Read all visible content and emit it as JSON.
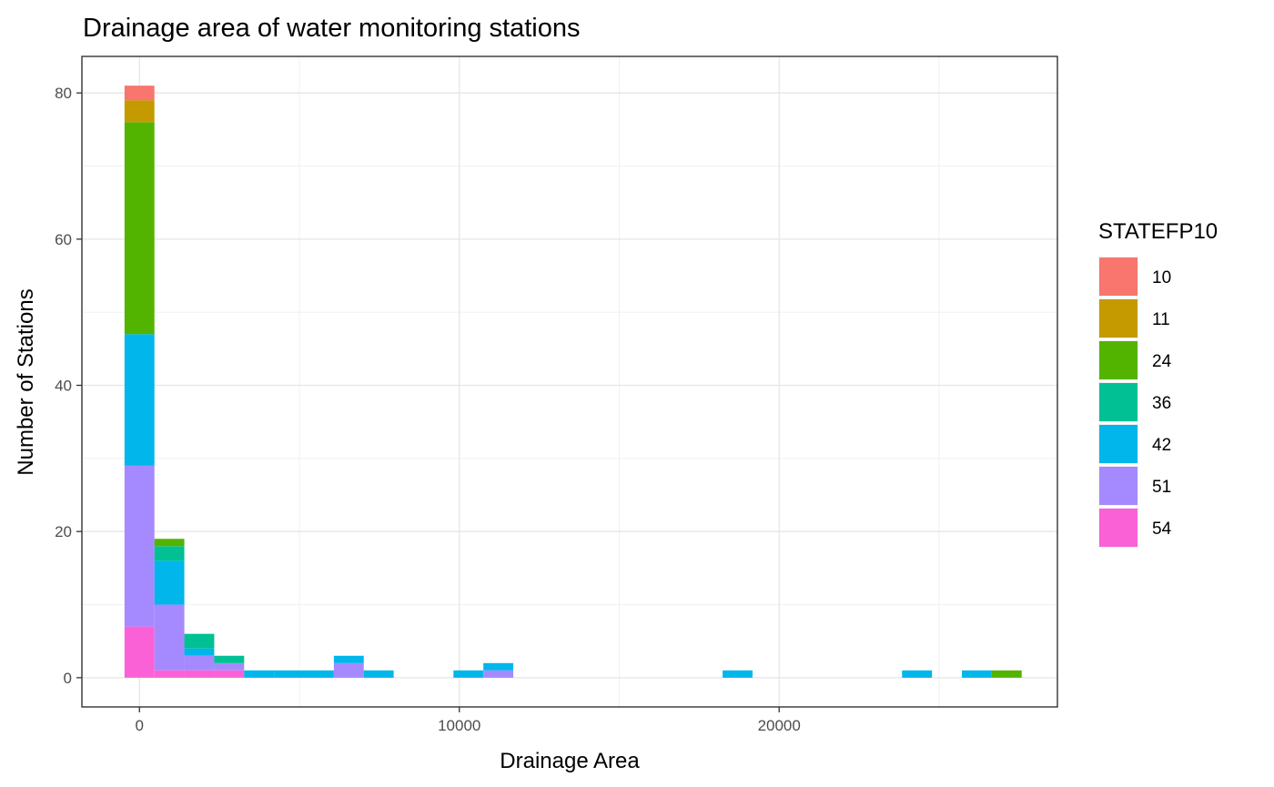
{
  "chart_data": {
    "type": "bar",
    "title": "Drainage area of water monitoring stations",
    "xlabel": "Drainage Area",
    "ylabel": "Number of Stations",
    "xlim": [
      -1800,
      28700
    ],
    "ylim": [
      -4,
      85
    ],
    "x_ticks": [
      0,
      10000,
      20000
    ],
    "x_tick_labels": [
      "0",
      "10000",
      "20000"
    ],
    "y_ticks": [
      0,
      20,
      40,
      60,
      80
    ],
    "y_tick_labels": [
      "0",
      "20",
      "40",
      "60",
      "80"
    ],
    "grid": true,
    "legend": {
      "title": "STATEFP10",
      "placement": "right"
    },
    "bin_width": 935,
    "x": [
      0,
      935,
      1870,
      2805,
      3740,
      4675,
      5610,
      6545,
      7480,
      10285,
      11220,
      18700,
      24310,
      26180,
      27115
    ],
    "series": [
      {
        "name": "10",
        "color": "#F8766D",
        "values": [
          2,
          0,
          0,
          0,
          0,
          0,
          0,
          0,
          0,
          0,
          0,
          0,
          0,
          0,
          0
        ]
      },
      {
        "name": "11",
        "color": "#C49A00",
        "values": [
          3,
          0,
          0,
          0,
          0,
          0,
          0,
          0,
          0,
          0,
          0,
          0,
          0,
          0,
          0
        ]
      },
      {
        "name": "24",
        "color": "#53B400",
        "values": [
          29,
          1,
          0,
          0,
          0,
          0,
          0,
          0,
          0,
          0,
          0,
          0,
          0,
          0,
          1
        ]
      },
      {
        "name": "36",
        "color": "#00C094",
        "values": [
          0,
          2,
          2,
          1,
          0,
          0,
          0,
          0,
          0,
          0,
          0,
          0,
          0,
          0,
          0
        ]
      },
      {
        "name": "42",
        "color": "#00B6EB",
        "values": [
          18,
          6,
          1,
          0,
          1,
          1,
          1,
          1,
          1,
          1,
          1,
          1,
          1,
          1,
          0
        ]
      },
      {
        "name": "51",
        "color": "#A58AFF",
        "values": [
          22,
          9,
          2,
          1,
          0,
          0,
          0,
          2,
          0,
          0,
          1,
          0,
          0,
          0,
          0
        ]
      },
      {
        "name": "54",
        "color": "#FB61D7",
        "values": [
          7,
          1,
          1,
          1,
          0,
          0,
          0,
          0,
          0,
          0,
          0,
          0,
          0,
          0,
          0
        ]
      }
    ]
  }
}
